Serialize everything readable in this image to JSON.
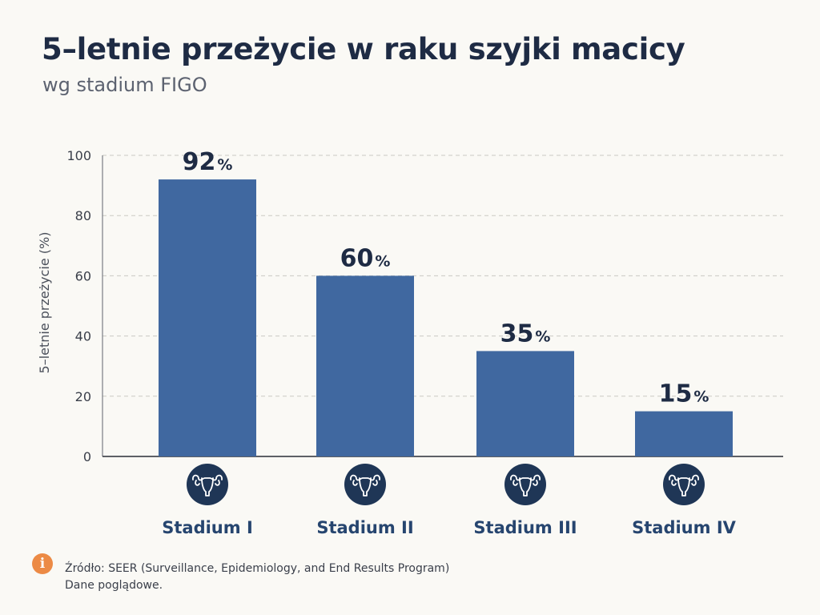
{
  "title": "5–letnie przeżycie w raku szyjki macicy",
  "subtitle": "wg stadium FIGO",
  "chart_data": {
    "type": "bar",
    "categories": [
      "Stadium I",
      "Stadium II",
      "Stadium III",
      "Stadium IV"
    ],
    "values": [
      92,
      60,
      35,
      15
    ],
    "value_labels": [
      "92",
      "60",
      "35",
      "15"
    ],
    "value_suffix": "%",
    "ylabel": "5–letnie przeżycie (%)",
    "xlabel": "",
    "ylim": [
      0,
      100
    ],
    "yticks": [
      0,
      20,
      40,
      60,
      80,
      100
    ],
    "ytick_labels": [
      "0",
      "20",
      "40",
      "60",
      "80",
      "100"
    ],
    "grid": true,
    "grid_style": "dashed",
    "bar_color": "#4068a0",
    "category_icon": "uterus-icon",
    "icon_color": "#1f3656"
  },
  "source": {
    "icon": "info-icon",
    "icon_glyph": "i",
    "icon_color": "#ec8a45",
    "line1": "Źródło: SEER (Surveillance, Epidemiology, and End Results Program)",
    "line2": "Dane poglądowe."
  }
}
